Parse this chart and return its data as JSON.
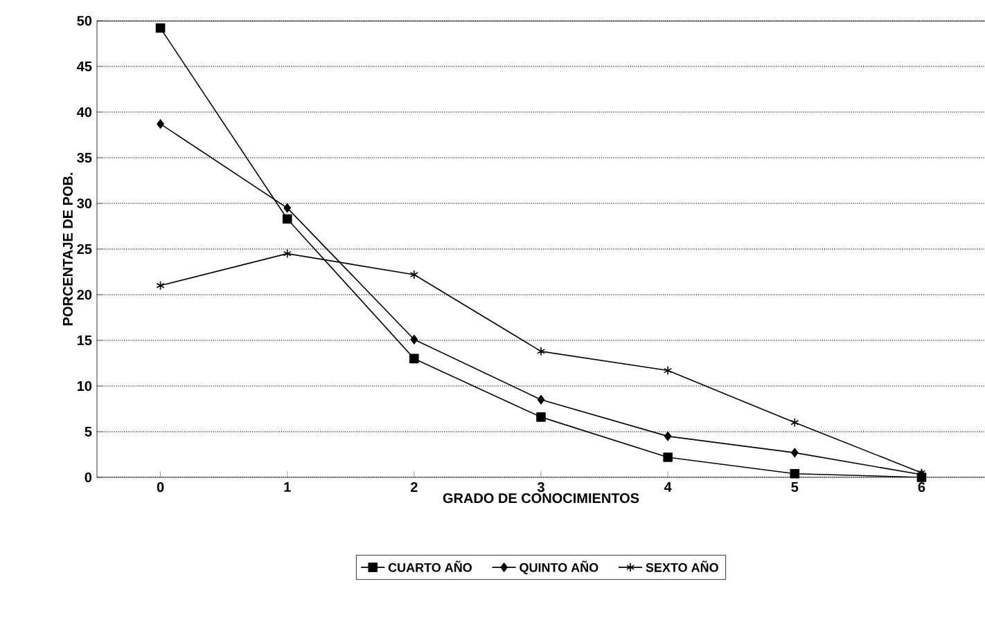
{
  "chart_data": {
    "type": "line",
    "xlabel": "GRADO DE CONOCIMIENTOS",
    "ylabel": "PORCENTAJE DE POB.",
    "x": [
      0,
      1,
      2,
      3,
      4,
      5,
      6
    ],
    "xlim": [
      -0.5,
      6.5
    ],
    "xticks": [
      0,
      1,
      2,
      3,
      4,
      5,
      6
    ],
    "ylim": [
      0,
      50
    ],
    "yticks": [
      0,
      5,
      10,
      15,
      20,
      25,
      30,
      35,
      40,
      45,
      50
    ],
    "grid": "y",
    "legend": "bottom",
    "line_style": "solid",
    "series": [
      {
        "name": "CUARTO AÑO",
        "color": "#000000",
        "marker": "square",
        "values": [
          49.2,
          28.3,
          13,
          6.6,
          2.2,
          0.4,
          0
        ]
      },
      {
        "name": "QUINTO AÑO",
        "color": "#000000",
        "marker": "diamond",
        "values": [
          38.7,
          29.5,
          15.1,
          8.5,
          4.5,
          2.7,
          0.3
        ]
      },
      {
        "name": "SEXTO AÑO",
        "color": "#000000",
        "marker": "cross",
        "values": [
          21,
          24.5,
          22.2,
          13.8,
          11.7,
          6,
          0.5
        ]
      }
    ]
  }
}
